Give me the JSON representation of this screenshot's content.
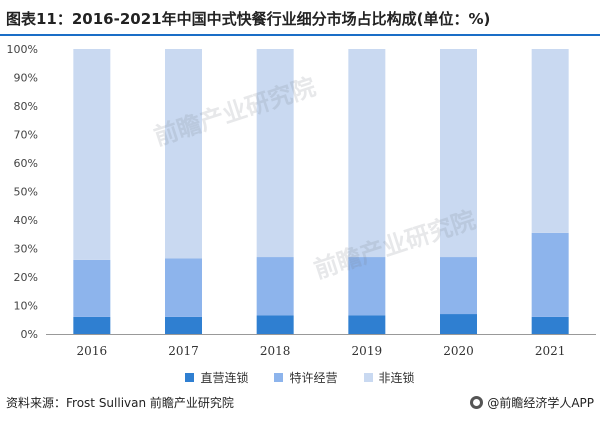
{
  "title": "图表11：2016-2021年中国中式快餐行业细分市场占比构成(单位：%)",
  "source": "资料来源：Frost Sullivan 前瞻产业研究院",
  "brand": "@前瞻经济学人APP",
  "watermark": "前瞻产业研究院",
  "colors": {
    "title_rule": "#1a6ec7",
    "direct": "#2f7fd1",
    "franchise": "#8db4ec",
    "non_chain": "#c9d9f1",
    "grid": "#e6e6e6",
    "axis": "#999999"
  },
  "chart_data": {
    "type": "bar",
    "stacked": true,
    "categories": [
      "2016",
      "2017",
      "2018",
      "2019",
      "2020",
      "2021"
    ],
    "series": [
      {
        "name": "直营连锁",
        "values": [
          6,
          6,
          6.5,
          6.5,
          7,
          6
        ]
      },
      {
        "name": "特许经营",
        "values": [
          20,
          20.5,
          20.5,
          20.5,
          20,
          29.5
        ]
      },
      {
        "name": "非连锁",
        "values": [
          74,
          73.5,
          73,
          73,
          73,
          64.5
        ]
      }
    ],
    "ylim": [
      0,
      100
    ],
    "yticks": [
      "0%",
      "10%",
      "20%",
      "30%",
      "40%",
      "50%",
      "60%",
      "70%",
      "80%",
      "90%",
      "100%"
    ],
    "grid": false,
    "legend_position": "bottom"
  }
}
